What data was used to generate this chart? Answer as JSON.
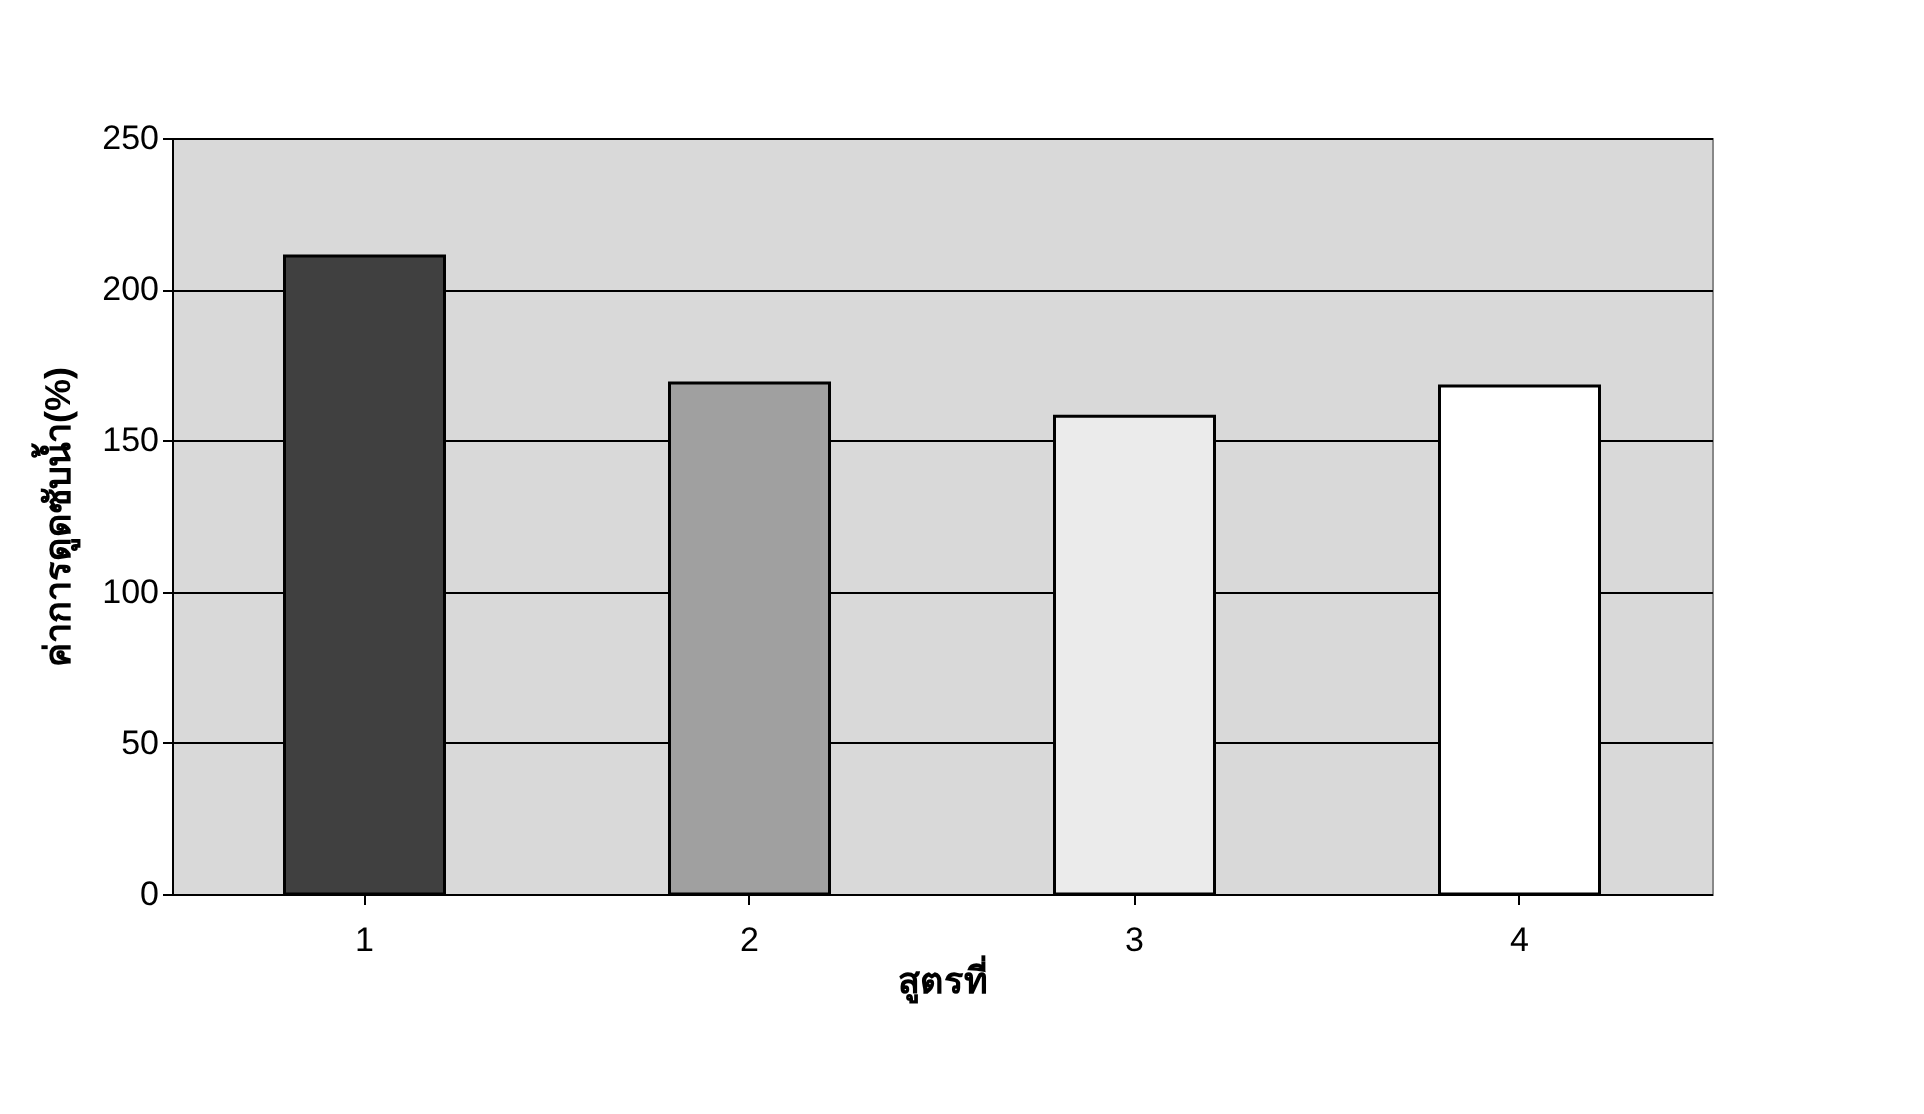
{
  "chart_data": {
    "type": "bar",
    "xlabel": "สูตรที่",
    "ylabel": "ค่าการดูดซับน้ำ(%)",
    "categories": [
      "1",
      "2",
      "3",
      "4"
    ],
    "values": [
      211,
      169,
      158,
      168
    ],
    "colors": [
      "#404040",
      "#a0a0a0",
      "#ebebeb",
      "#ffffff"
    ],
    "ylim": [
      0,
      250
    ],
    "yticks": [
      0,
      50,
      100,
      150,
      200,
      250
    ],
    "grid": "y"
  }
}
